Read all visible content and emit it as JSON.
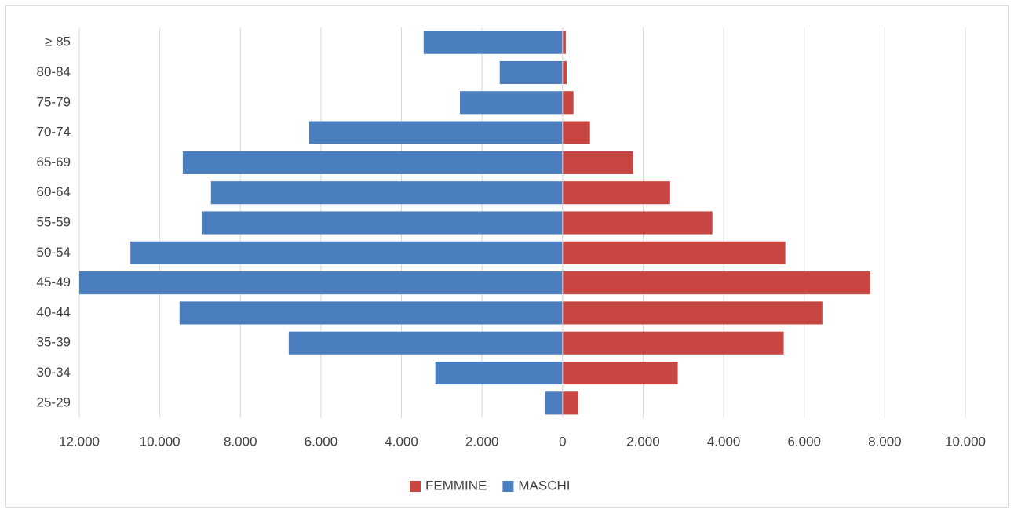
{
  "chart_data": {
    "type": "bar",
    "orientation": "horizontal",
    "stacked": true,
    "categories": [
      "25-29",
      "30-34",
      "35-39",
      "40-44",
      "45-49",
      "50-54",
      "55-59",
      "60-64",
      "65-69",
      "70-74",
      "75-79",
      "80-84",
      "≥ 85"
    ],
    "series": [
      {
        "name": "FEMMINE",
        "color": "#c84641",
        "values": [
          390,
          2860,
          5490,
          6450,
          7640,
          5530,
          3720,
          2670,
          1750,
          680,
          270,
          100,
          80
        ]
      },
      {
        "name": "MASCHI",
        "color": "#4a7ebf",
        "values": [
          -430,
          -3160,
          -6800,
          -9510,
          -12000,
          -10730,
          -8960,
          -8730,
          -9430,
          -6290,
          -2550,
          -1560,
          -3450
        ]
      }
    ],
    "xlim": [
      -12000,
      10000
    ],
    "xticks": [
      {
        "value": -12000,
        "label": "12.000"
      },
      {
        "value": -10000,
        "label": "10.000"
      },
      {
        "value": -8000,
        "label": "8.000"
      },
      {
        "value": -6000,
        "label": "6.000"
      },
      {
        "value": -4000,
        "label": "4.000"
      },
      {
        "value": -2000,
        "label": "2.000"
      },
      0,
      {
        "value": 2000,
        "label": "2.000"
      },
      {
        "value": 4000,
        "label": "4.000"
      },
      {
        "value": 6000,
        "label": "6.000"
      },
      {
        "value": 8000,
        "label": "8.000"
      },
      {
        "value": 10000,
        "label": "10.000"
      }
    ],
    "grid": true,
    "legend": "bottom"
  }
}
